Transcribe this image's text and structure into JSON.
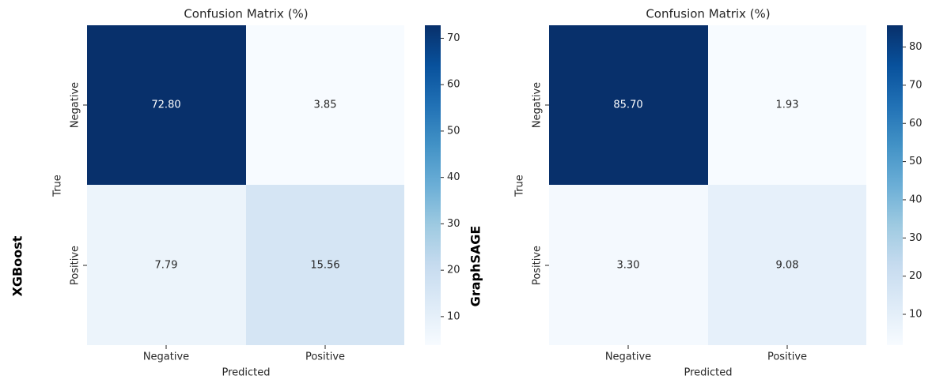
{
  "chart_data": [
    {
      "type": "heatmap",
      "model_label": "XGBoost",
      "title": "Confusion Matrix (%)",
      "xlabel": "Predicted",
      "ylabel": "True",
      "x_categories": [
        "Negative",
        "Positive"
      ],
      "y_categories": [
        "Negative",
        "Positive"
      ],
      "values": [
        [
          72.8,
          3.85
        ],
        [
          7.79,
          15.56
        ]
      ],
      "value_labels": [
        [
          "72.80",
          "3.85"
        ],
        [
          "7.79",
          "15.56"
        ]
      ],
      "colorbar": {
        "min": 3.85,
        "max": 72.8,
        "ticks": [
          10,
          20,
          30,
          40,
          50,
          60,
          70
        ],
        "tick_labels": [
          "10",
          "20",
          "30",
          "40",
          "50",
          "60",
          "70"
        ]
      },
      "colormap": "Blues"
    },
    {
      "type": "heatmap",
      "model_label": "GraphSAGE",
      "title": "Confusion Matrix (%)",
      "xlabel": "Predicted",
      "ylabel": "True",
      "x_categories": [
        "Negative",
        "Positive"
      ],
      "y_categories": [
        "Negative",
        "Positive"
      ],
      "values": [
        [
          85.7,
          1.93
        ],
        [
          3.3,
          9.08
        ]
      ],
      "value_labels": [
        [
          "85.70",
          "1.93"
        ],
        [
          "3.30",
          "9.08"
        ]
      ],
      "colorbar": {
        "min": 1.93,
        "max": 85.7,
        "ticks": [
          10,
          20,
          30,
          40,
          50,
          60,
          70,
          80
        ],
        "tick_labels": [
          "10",
          "20",
          "30",
          "40",
          "50",
          "60",
          "70",
          "80"
        ]
      },
      "colormap": "Blues"
    }
  ]
}
